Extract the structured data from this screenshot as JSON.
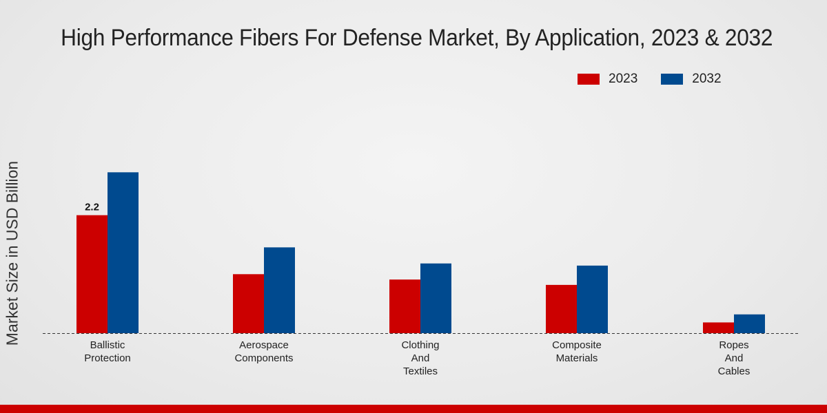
{
  "chart_data": {
    "type": "bar",
    "title": "High Performance Fibers For Defense Market, By Application, 2023 & 2032",
    "xlabel": "",
    "ylabel": "Market Size in USD Billion",
    "categories": [
      "Ballistic\nProtection",
      "Aerospace\nComponents",
      "Clothing\nAnd\nTextiles",
      "Composite\nMaterials",
      "Ropes\nAnd\nCables"
    ],
    "series": [
      {
        "name": "2023",
        "color": "#cc0000",
        "values": [
          2.2,
          1.1,
          1.0,
          0.9,
          0.2
        ]
      },
      {
        "name": "2032",
        "color": "#004a8f",
        "values": [
          3.0,
          1.6,
          1.3,
          1.26,
          0.35
        ]
      }
    ],
    "data_labels": [
      {
        "series": 0,
        "index": 0,
        "text": "2.2"
      }
    ],
    "ylim": [
      0,
      5.7
    ],
    "grid": false,
    "legend": "top-right"
  }
}
